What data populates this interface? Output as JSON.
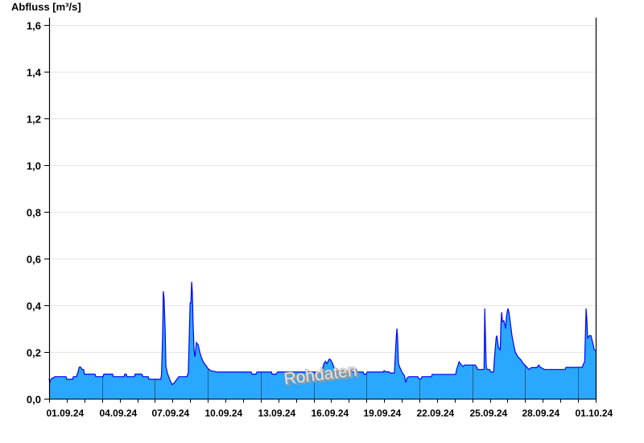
{
  "chart_data": {
    "type": "area",
    "title": "",
    "ylabel": "Abfluss [m³/s]",
    "xlabel": "",
    "xlim": [
      "2024-09-01T00:00",
      "2024-10-02T00:00"
    ],
    "ylim": [
      0,
      1.63
    ],
    "yticks": [
      0,
      0.2,
      0.4,
      0.6,
      0.8,
      1.0,
      1.2,
      1.4,
      1.6
    ],
    "ytick_labels": [
      "0,0",
      "0,2",
      "0,4",
      "0,6",
      "0,8",
      "1,0",
      "1,2",
      "1,4",
      "1,6"
    ],
    "xticks": [
      "2024-09-01",
      "2024-09-04",
      "2024-09-07",
      "2024-09-10",
      "2024-09-13",
      "2024-09-16",
      "2024-09-19",
      "2024-09-22",
      "2024-09-25",
      "2024-09-28",
      "2024-10-01"
    ],
    "xtick_labels": [
      "01.09.24",
      "04.09.24",
      "07.09.24",
      "10.09.24",
      "13.09.24",
      "16.09.24",
      "19.09.24",
      "22.09.24",
      "25.09.24",
      "28.09.24",
      "01.10.24"
    ],
    "grid": "horizontal",
    "watermark": "Rohdaten",
    "colors": {
      "fill": "#2aa8ff",
      "line": "#0000ff",
      "grid": "#e6e6e6",
      "major_lines": "#1d5f8c"
    },
    "series": [
      {
        "points": [
          [
            "2024-09-01T00:00",
            0.086
          ],
          [
            "2024-09-01T01:00",
            0.07
          ],
          [
            "2024-09-01T03:00",
            0.085
          ],
          [
            "2024-09-01T08:00",
            0.094
          ],
          [
            "2024-09-01T23:00",
            0.094
          ],
          [
            "2024-09-02T00:00",
            0.083
          ],
          [
            "2024-09-02T08:00",
            0.083
          ],
          [
            "2024-09-02T09:00",
            0.094
          ],
          [
            "2024-09-02T13:00",
            0.094
          ],
          [
            "2024-09-02T15:30",
            0.115
          ],
          [
            "2024-09-02T17:00",
            0.135
          ],
          [
            "2024-09-02T19:00",
            0.135
          ],
          [
            "2024-09-02T21:00",
            0.125
          ],
          [
            "2024-09-02T23:00",
            0.125
          ],
          [
            "2024-09-03T00:00",
            0.105
          ],
          [
            "2024-09-03T14:30",
            0.105
          ],
          [
            "2024-09-03T15:30",
            0.094
          ],
          [
            "2024-09-04T01:30",
            0.094
          ],
          [
            "2024-09-04T02:30",
            0.105
          ],
          [
            "2024-09-04T14:30",
            0.105
          ],
          [
            "2024-09-04T15:30",
            0.094
          ],
          [
            "2024-09-05T06:00",
            0.094
          ],
          [
            "2024-09-05T07:00",
            0.105
          ],
          [
            "2024-09-05T09:00",
            0.105
          ],
          [
            "2024-09-05T10:00",
            0.094
          ],
          [
            "2024-09-05T20:00",
            0.094
          ],
          [
            "2024-09-05T21:00",
            0.105
          ],
          [
            "2024-09-06T06:00",
            0.105
          ],
          [
            "2024-09-06T08:00",
            0.094
          ],
          [
            "2024-09-06T15:00",
            0.094
          ],
          [
            "2024-09-06T16:00",
            0.083
          ],
          [
            "2024-09-07T08:00",
            0.083
          ],
          [
            "2024-09-07T09:00",
            0.1
          ],
          [
            "2024-09-07T10:30",
            0.27
          ],
          [
            "2024-09-07T11:30",
            0.46
          ],
          [
            "2024-09-07T12:30",
            0.43
          ],
          [
            "2024-09-07T14:00",
            0.29
          ],
          [
            "2024-09-07T15:00",
            0.14
          ],
          [
            "2024-09-07T17:00",
            0.11
          ],
          [
            "2024-09-07T20:30",
            0.08
          ],
          [
            "2024-09-07T23:30",
            0.06
          ],
          [
            "2024-09-08T03:00",
            0.07
          ],
          [
            "2024-09-08T05:00",
            0.08
          ],
          [
            "2024-09-08T08:30",
            0.094
          ],
          [
            "2024-09-08T19:30",
            0.094
          ],
          [
            "2024-09-08T21:30",
            0.11
          ],
          [
            "2024-09-09T00:00",
            0.41
          ],
          [
            "2024-09-09T01:00",
            0.41
          ],
          [
            "2024-09-09T02:00",
            0.5
          ],
          [
            "2024-09-09T03:00",
            0.45
          ],
          [
            "2024-09-09T04:00",
            0.32
          ],
          [
            "2024-09-09T05:30",
            0.2
          ],
          [
            "2024-09-09T06:30",
            0.18
          ],
          [
            "2024-09-09T07:30",
            0.21
          ],
          [
            "2024-09-09T08:30",
            0.24
          ],
          [
            "2024-09-09T11:00",
            0.23
          ],
          [
            "2024-09-09T13:00",
            0.2
          ],
          [
            "2024-09-09T15:00",
            0.18
          ],
          [
            "2024-09-09T17:30",
            0.16
          ],
          [
            "2024-09-09T19:30",
            0.15
          ],
          [
            "2024-09-09T22:00",
            0.14
          ],
          [
            "2024-09-10T00:00",
            0.13
          ],
          [
            "2024-09-10T04:00",
            0.12
          ],
          [
            "2024-09-10T13:00",
            0.114
          ],
          [
            "2024-09-12T11:00",
            0.114
          ],
          [
            "2024-09-12T12:00",
            0.105
          ],
          [
            "2024-09-12T17:30",
            0.105
          ],
          [
            "2024-09-12T19:00",
            0.114
          ],
          [
            "2024-09-13T14:30",
            0.114
          ],
          [
            "2024-09-13T15:30",
            0.105
          ],
          [
            "2024-09-13T21:00",
            0.105
          ],
          [
            "2024-09-13T23:00",
            0.114
          ],
          [
            "2024-09-16T11:30",
            0.114
          ],
          [
            "2024-09-16T14:00",
            0.15
          ],
          [
            "2024-09-16T16:00",
            0.16
          ],
          [
            "2024-09-16T18:00",
            0.15
          ],
          [
            "2024-09-16T21:30",
            0.17
          ],
          [
            "2024-09-16T23:30",
            0.165
          ],
          [
            "2024-09-17T02:00",
            0.15
          ],
          [
            "2024-09-17T04:00",
            0.13
          ],
          [
            "2024-09-17T07:30",
            0.12
          ],
          [
            "2024-09-17T09:30",
            0.114
          ],
          [
            "2024-09-18T19:30",
            0.114
          ],
          [
            "2024-09-18T20:30",
            0.105
          ],
          [
            "2024-09-18T23:30",
            0.105
          ],
          [
            "2024-09-19T01:00",
            0.114
          ],
          [
            "2024-09-19T23:00",
            0.114
          ],
          [
            "2024-09-20T00:00",
            0.12
          ],
          [
            "2024-09-20T02:00",
            0.115
          ],
          [
            "2024-09-20T06:30",
            0.115
          ],
          [
            "2024-09-20T08:30",
            0.11
          ],
          [
            "2024-09-20T14:00",
            0.11
          ],
          [
            "2024-09-20T15:30",
            0.2
          ],
          [
            "2024-09-20T16:30",
            0.26
          ],
          [
            "2024-09-20T17:30",
            0.3
          ],
          [
            "2024-09-20T18:30",
            0.25
          ],
          [
            "2024-09-20T19:30",
            0.15
          ],
          [
            "2024-09-20T22:00",
            0.13
          ],
          [
            "2024-09-21T01:00",
            0.11
          ],
          [
            "2024-09-21T03:30",
            0.1
          ],
          [
            "2024-09-21T05:30",
            0.07
          ],
          [
            "2024-09-21T07:30",
            0.09
          ],
          [
            "2024-09-21T10:00",
            0.094
          ],
          [
            "2024-09-21T22:00",
            0.094
          ],
          [
            "2024-09-21T23:00",
            0.085
          ],
          [
            "2024-09-22T02:30",
            0.085
          ],
          [
            "2024-09-22T03:30",
            0.094
          ],
          [
            "2024-09-22T16:30",
            0.094
          ],
          [
            "2024-09-22T17:30",
            0.104
          ],
          [
            "2024-09-24T01:30",
            0.104
          ],
          [
            "2024-09-24T02:30",
            0.123
          ],
          [
            "2024-09-24T06:00",
            0.158
          ],
          [
            "2024-09-24T09:00",
            0.145
          ],
          [
            "2024-09-24T11:30",
            0.138
          ],
          [
            "2024-09-24T13:30",
            0.144
          ],
          [
            "2024-09-25T04:00",
            0.144
          ],
          [
            "2024-09-25T06:00",
            0.135
          ],
          [
            "2024-09-25T07:00",
            0.125
          ],
          [
            "2024-09-25T16:00",
            0.125
          ],
          [
            "2024-09-25T17:00",
            0.386
          ],
          [
            "2024-09-25T18:00",
            0.26
          ],
          [
            "2024-09-25T19:00",
            0.14
          ],
          [
            "2024-09-25T20:00",
            0.125
          ],
          [
            "2024-09-25T23:30",
            0.125
          ],
          [
            "2024-09-26T01:30",
            0.114
          ],
          [
            "2024-09-26T05:00",
            0.114
          ],
          [
            "2024-09-26T06:00",
            0.167
          ],
          [
            "2024-09-26T08:30",
            0.26
          ],
          [
            "2024-09-26T09:30",
            0.27
          ],
          [
            "2024-09-26T11:30",
            0.22
          ],
          [
            "2024-09-26T14:00",
            0.21
          ],
          [
            "2024-09-26T15:00",
            0.32
          ],
          [
            "2024-09-26T16:00",
            0.37
          ],
          [
            "2024-09-26T17:00",
            0.33
          ],
          [
            "2024-09-26T19:00",
            0.334
          ],
          [
            "2024-09-26T21:30",
            0.3
          ],
          [
            "2024-09-26T22:30",
            0.35
          ],
          [
            "2024-09-27T00:30",
            0.386
          ],
          [
            "2024-09-27T02:00",
            0.37
          ],
          [
            "2024-09-27T04:00",
            0.32
          ],
          [
            "2024-09-27T06:00",
            0.27
          ],
          [
            "2024-09-27T08:30",
            0.23
          ],
          [
            "2024-09-27T10:30",
            0.2
          ],
          [
            "2024-09-27T14:00",
            0.18
          ],
          [
            "2024-09-27T18:30",
            0.165
          ],
          [
            "2024-09-27T21:30",
            0.15
          ],
          [
            "2024-09-28T01:00",
            0.14
          ],
          [
            "2024-09-28T05:00",
            0.125
          ],
          [
            "2024-09-28T08:30",
            0.133
          ],
          [
            "2024-09-28T16:00",
            0.133
          ],
          [
            "2024-09-28T18:30",
            0.144
          ],
          [
            "2024-09-28T20:30",
            0.135
          ],
          [
            "2024-09-29T02:00",
            0.125
          ],
          [
            "2024-09-30T06:30",
            0.125
          ],
          [
            "2024-09-30T07:30",
            0.134
          ],
          [
            "2024-10-01T05:30",
            0.134
          ],
          [
            "2024-10-01T09:00",
            0.16
          ],
          [
            "2024-10-01T10:00",
            0.27
          ],
          [
            "2024-10-01T11:00",
            0.386
          ],
          [
            "2024-10-01T12:00",
            0.34
          ],
          [
            "2024-10-01T13:00",
            0.26
          ],
          [
            "2024-10-01T15:30",
            0.27
          ],
          [
            "2024-10-01T17:30",
            0.27
          ],
          [
            "2024-10-01T20:00",
            0.24
          ],
          [
            "2024-10-01T22:00",
            0.21
          ],
          [
            "2024-10-02T00:00",
            0.206
          ]
        ]
      }
    ]
  }
}
